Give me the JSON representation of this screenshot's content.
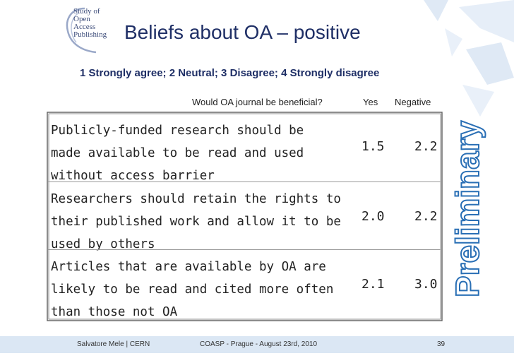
{
  "logo": {
    "lines": [
      "Study of",
      "Open",
      "Access",
      "Publishing"
    ]
  },
  "title": "Beliefs about OA – positive",
  "scale": "1 Strongly agree; 2 Neutral; 3 Disagree; 4 Strongly disagree",
  "columns": {
    "question": "Would OA journal be beneficial?",
    "yes": "Yes",
    "negative": "Negative"
  },
  "rows": [
    {
      "lines": [
        "Publicly-funded research should be",
        "made available to be read and used",
        "without access barrier"
      ],
      "yes": "1.5",
      "negative": "2.2"
    },
    {
      "lines": [
        "Researchers should retain the rights to",
        "their published work and allow it to be",
        "used by others"
      ],
      "yes": "2.0",
      "negative": "2.2"
    },
    {
      "lines": [
        "Articles that are available by OA are",
        "likely to be read and cited more often",
        "than those not OA"
      ],
      "yes": "2.1",
      "negative": "3.0"
    }
  ],
  "stamp": "Preliminary",
  "footer": {
    "author": "Salvatore Mele | CERN",
    "event": "COASP - Prague - August 23rd, 2010",
    "page": "39"
  },
  "colors": {
    "title": "#1f2f66",
    "footer_bg": "#dbe7f4",
    "stamp": "#2a6fb5",
    "deco": "#dfe9f5"
  }
}
